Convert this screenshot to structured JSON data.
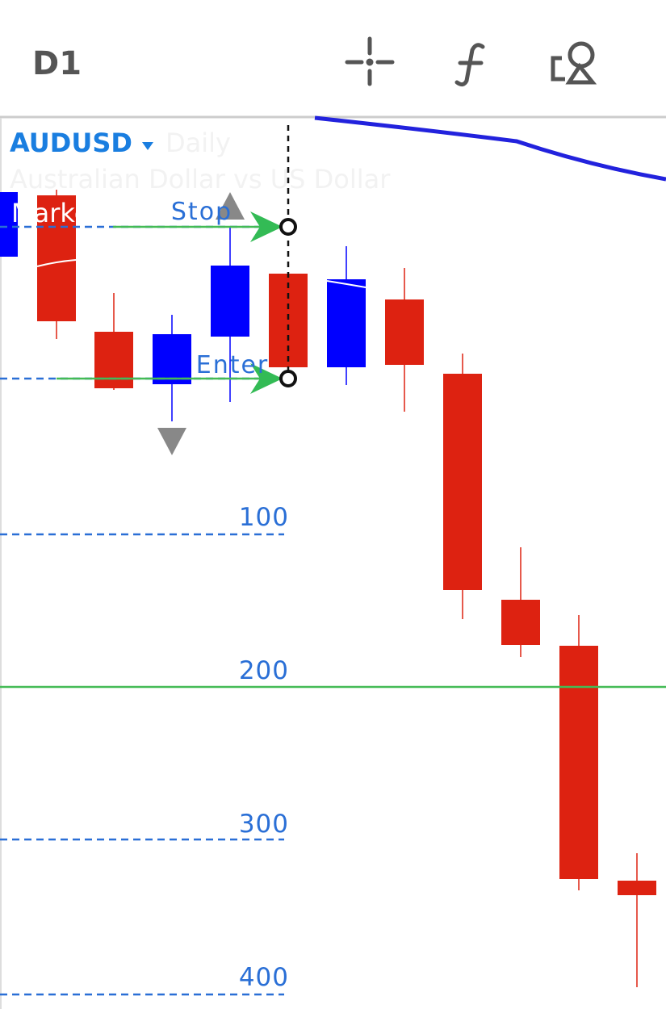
{
  "toolbar": {
    "timeframe": "D1"
  },
  "chart": {
    "symbol": "AUDUSD",
    "period": "Daily",
    "description": "Australian Dollar vs US Dollar",
    "status": "Market closed",
    "levels": [
      {
        "label": "Stop"
      },
      {
        "label": "Enter"
      }
    ],
    "pip_labels": [
      100,
      200,
      300,
      400
    ]
  }
}
